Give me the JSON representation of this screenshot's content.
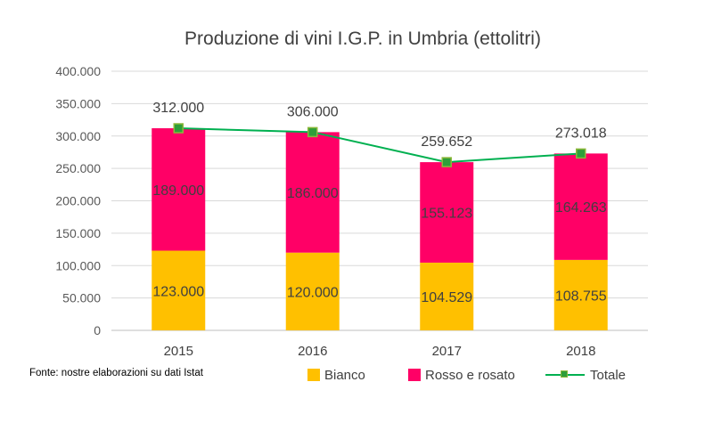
{
  "chart_data": {
    "type": "bar",
    "stacked": true,
    "title": "Produzione di vini I.G.P. in Umbria (ettolitri)",
    "categories": [
      "2015",
      "2016",
      "2017",
      "2018"
    ],
    "ylim": [
      0,
      400000
    ],
    "yticks": [
      "0",
      "50.000",
      "100.000",
      "150.000",
      "200.000",
      "250.000",
      "300.000",
      "350.000",
      "400.000"
    ],
    "grid": true,
    "legend_position": "bottom",
    "series": [
      {
        "name": "Bianco",
        "type": "bar",
        "color": "#FFC000",
        "values": [
          123000,
          120000,
          104529,
          108755
        ],
        "labels": [
          "123.000",
          "120.000",
          "104.529",
          "108.755"
        ]
      },
      {
        "name": "Rosso e rosato",
        "type": "bar",
        "color": "#FF0066",
        "values": [
          189000,
          186000,
          155123,
          164263
        ],
        "labels": [
          "189.000",
          "186.000",
          "155.123",
          "164.263"
        ]
      },
      {
        "name": "Totale",
        "type": "line",
        "color": "#00B050",
        "marker_color": "#2E9E3A",
        "values": [
          312000,
          306000,
          259652,
          273018
        ],
        "labels": [
          "312.000",
          "306.000",
          "259.652",
          "273.018"
        ]
      }
    ]
  },
  "source_note": "Fonte: nostre elaborazioni su dati Istat"
}
